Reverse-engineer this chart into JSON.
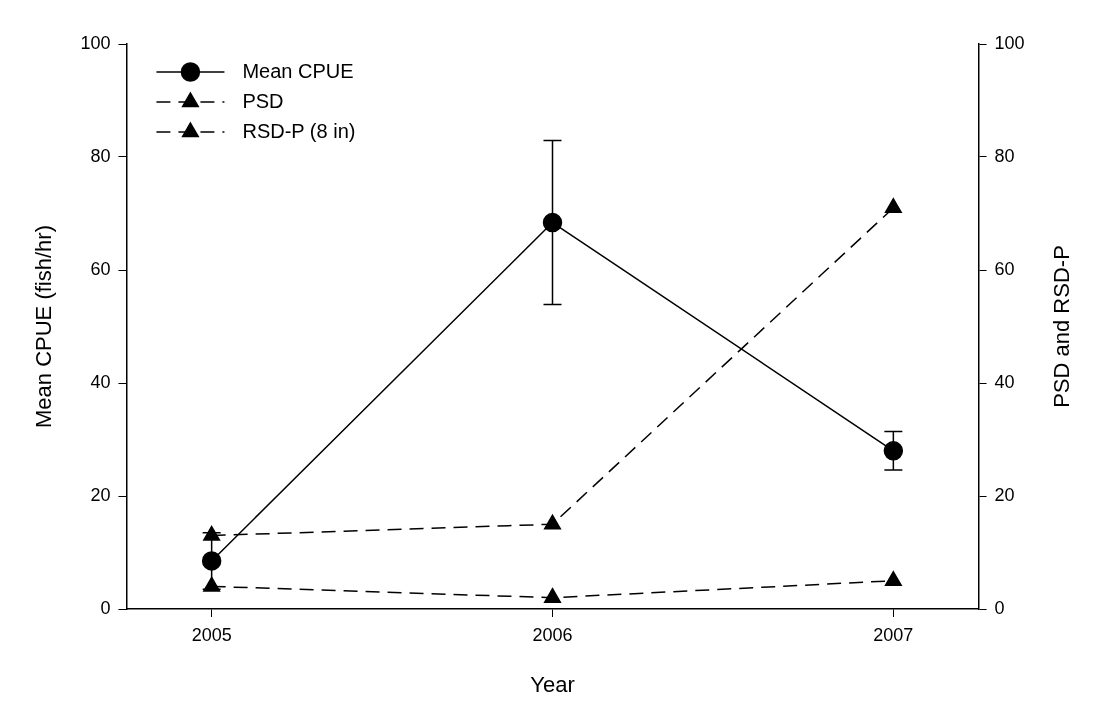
{
  "chart_data": {
    "type": "line",
    "xlabel": "Year",
    "ylabel": "Mean CPUE (fish/hr)",
    "y2label": "PSD and RSD-P",
    "x": [
      2005,
      2006,
      2007
    ],
    "xlim": [
      2004.75,
      2007.25
    ],
    "xticks": [
      2005,
      2006,
      2007
    ],
    "ylim": [
      0,
      100
    ],
    "yticks": [
      0,
      20,
      40,
      60,
      80,
      100
    ],
    "y2lim": [
      0,
      100
    ],
    "y2ticks": [
      0,
      20,
      40,
      60,
      80,
      100
    ],
    "grid": false,
    "legend": "top left",
    "series": [
      {
        "name": "Mean CPUE",
        "color": "#000000",
        "values": [
          8.5,
          68.4,
          28.0
        ],
        "errors": [
          5,
          14.5,
          3.4
        ],
        "marker": "circle",
        "line_style": "solid"
      },
      {
        "name": "PSD",
        "color": "#000000",
        "values": [
          13,
          15,
          71
        ],
        "axis": "y2",
        "marker": "triangle",
        "line_style": "dashed"
      },
      {
        "name": "RSD-P (8 in)",
        "color": "#000000",
        "values": [
          4,
          2,
          5
        ],
        "axis": "y2",
        "marker": "triangle",
        "line_style": "dashed"
      }
    ]
  }
}
